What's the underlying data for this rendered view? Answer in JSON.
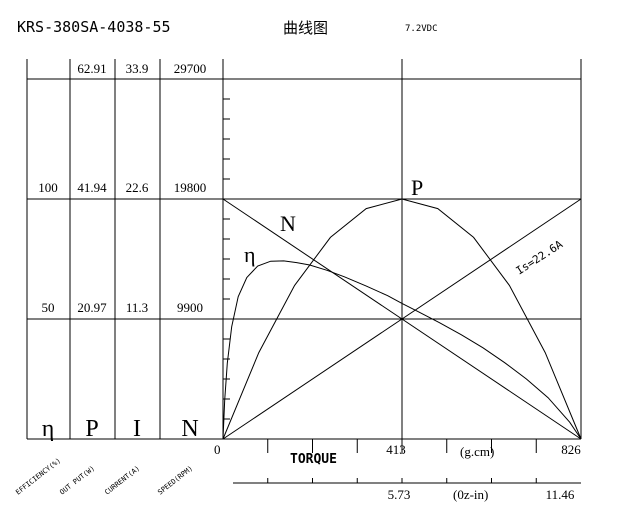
{
  "header": {
    "model": "KRS-380SA-4038-55",
    "title": "曲线图",
    "voltage": "7.2VDC"
  },
  "left_table": {
    "columns": [
      {
        "symbol": "η",
        "axis_label": "EFFICIENCY(%)",
        "values": [
          "",
          "100",
          "50"
        ]
      },
      {
        "symbol": "P",
        "axis_label": "OUT PUT(W)",
        "values": [
          "62.91",
          "41.94",
          "20.97"
        ]
      },
      {
        "symbol": "I",
        "axis_label": "CURRENT(A)",
        "values": [
          "33.9",
          "22.6",
          "11.3"
        ]
      },
      {
        "symbol": "N",
        "axis_label": "SPEED(RPM)",
        "values": [
          "29700",
          "19800",
          "9900"
        ]
      }
    ]
  },
  "chart_data": {
    "type": "line",
    "xlabel": "TORQUE",
    "x_unit": "(g.cm)",
    "x_ticks": [
      "0",
      "413",
      "826"
    ],
    "x2_unit": "(0z-in)",
    "x2_ticks": [
      "5.73",
      "11.46"
    ],
    "xlim": [
      0,
      826
    ],
    "ylim_fraction": [
      0,
      1.5
    ],
    "grid": true,
    "series": [
      {
        "name": "N",
        "y_unit": "RPM",
        "x": [
          0,
          826
        ],
        "y": [
          19800,
          0
        ]
      },
      {
        "name": "I",
        "y_unit": "A",
        "label": "Is=22.6A",
        "x": [
          0,
          826
        ],
        "y": [
          0,
          22.6
        ]
      },
      {
        "name": "P",
        "y_unit": "W",
        "x": [
          0,
          82.6,
          165.2,
          247.8,
          330.4,
          413,
          495.6,
          578.2,
          660.8,
          743.4,
          826
        ],
        "y": [
          0,
          15.1,
          26.84,
          35.23,
          40.26,
          41.94,
          40.26,
          35.23,
          26.84,
          15.1,
          0
        ]
      },
      {
        "name": "η",
        "y_unit": "%",
        "x": [
          0,
          4,
          10,
          20,
          35,
          55,
          80,
          110,
          140,
          170,
          200,
          240,
          280,
          330,
          380,
          413,
          450,
          500,
          550,
          600,
          650,
          700,
          750,
          800,
          826
        ],
        "y": [
          0,
          16.2,
          31.6,
          46.8,
          59.3,
          67.3,
          72.1,
          74.1,
          74.2,
          73.5,
          72.5,
          70.3,
          67.6,
          63.8,
          59.7,
          56.5,
          53.1,
          48.4,
          43.4,
          38.0,
          31.8,
          25.0,
          17.2,
          7.0,
          0
        ]
      }
    ],
    "curve_labels": [
      "N",
      "P",
      "η",
      "Is=22.6A"
    ]
  }
}
